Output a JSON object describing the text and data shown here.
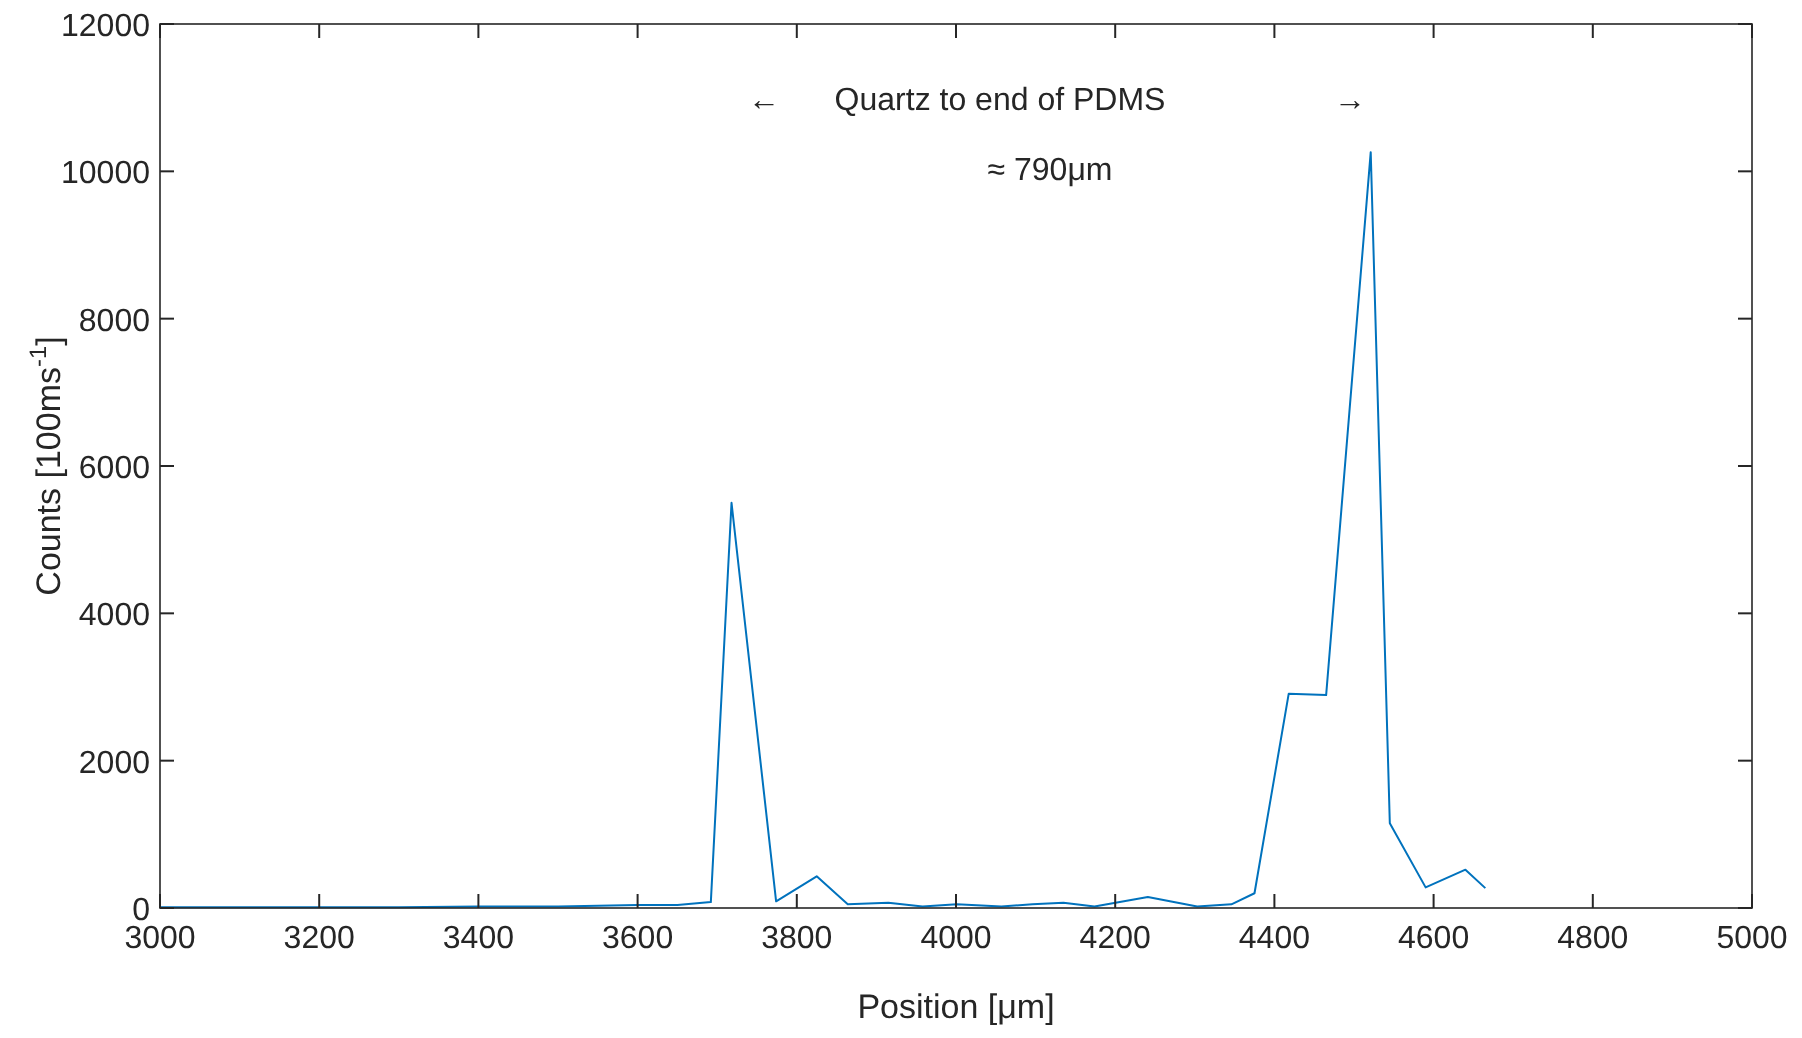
{
  "chart_data": {
    "type": "line",
    "xlabel": "Position [μm]",
    "ylabel": "Counts [100ms$^{-1}$]",
    "annotations": [
      "←",
      "Quartz to end of PDMS",
      "→",
      "≈ 790μm"
    ],
    "x": [
      3000,
      3100,
      3200,
      3300,
      3400,
      3500,
      3600,
      3650,
      3692,
      3718,
      3774,
      3825,
      3864,
      3915,
      3958,
      4001,
      4057,
      4096,
      4135,
      4174,
      4241,
      4303,
      4346,
      4375,
      4418,
      4465,
      4521,
      4545,
      4590,
      4640,
      4665
    ],
    "series": [
      {
        "color": "#0072bd",
        "values": [
          10,
          10,
          10,
          10,
          20,
          20,
          40,
          40,
          80,
          5500,
          90,
          430,
          50,
          70,
          20,
          50,
          20,
          50,
          70,
          20,
          150,
          20,
          50,
          200,
          2910,
          2890,
          10260,
          1150,
          280,
          520,
          270
        ]
      }
    ],
    "xlim": [
      3000,
      5000
    ],
    "xticks": [
      3000,
      3200,
      3400,
      3600,
      3800,
      4000,
      4200,
      4400,
      4600,
      4800,
      5000
    ],
    "ylim": [
      0,
      12000
    ],
    "yticks": [
      0,
      2000,
      4000,
      6000,
      8000,
      10000,
      12000
    ],
    "marker": "none",
    "line_style": "solid"
  }
}
